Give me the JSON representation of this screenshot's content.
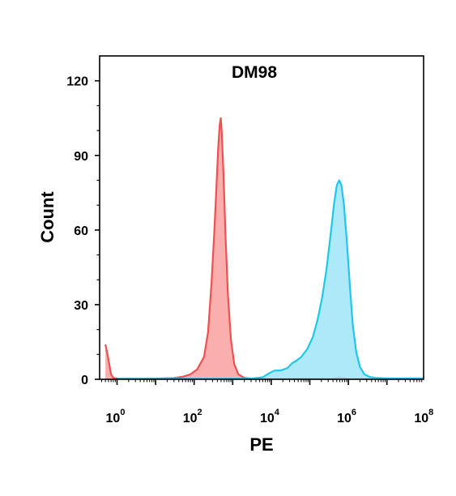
{
  "chart_data": {
    "type": "area",
    "title": "DM98",
    "xlabel": "PE",
    "ylabel": "Count",
    "xscale": "log",
    "xlim": [
      1,
      100000000
    ],
    "ylim": [
      0,
      130
    ],
    "yticks": [
      0,
      30,
      60,
      90,
      120
    ],
    "xticks": [
      {
        "base": "10",
        "exp": "0"
      },
      {
        "base": "10",
        "exp": "2"
      },
      {
        "base": "10",
        "exp": "4"
      },
      {
        "base": "10",
        "exp": "6"
      },
      {
        "base": "10",
        "exp": "8"
      }
    ],
    "grid": false,
    "legend": "none",
    "series": [
      {
        "color": "#f05050",
        "fill": "#f9a0a0",
        "points": [
          [
            0.5,
            14
          ],
          [
            0.6,
            8
          ],
          [
            0.7,
            2
          ],
          [
            0.8,
            0.6
          ],
          [
            1,
            0.3
          ],
          [
            3,
            0.2
          ],
          [
            10,
            0.3
          ],
          [
            30,
            0.5
          ],
          [
            50,
            1
          ],
          [
            80,
            2
          ],
          [
            120,
            4
          ],
          [
            180,
            9
          ],
          [
            230,
            19
          ],
          [
            280,
            38
          ],
          [
            330,
            58
          ],
          [
            380,
            78
          ],
          [
            420,
            93
          ],
          [
            460,
            102
          ],
          [
            490,
            105
          ],
          [
            520,
            99
          ],
          [
            580,
            82
          ],
          [
            650,
            58
          ],
          [
            750,
            34
          ],
          [
            900,
            16
          ],
          [
            1100,
            6
          ],
          [
            1400,
            2
          ],
          [
            2000,
            0.6
          ],
          [
            3000,
            0.3
          ],
          [
            10000,
            0.2
          ],
          [
            100000,
            0.3
          ],
          [
            400000,
            0.3
          ],
          [
            600000,
            0.8
          ],
          [
            900000,
            0.3
          ],
          [
            1000000,
            0.2
          ],
          [
            100000000,
            0.2
          ]
        ]
      },
      {
        "color": "#1ec8ec",
        "fill": "#9fe5f8",
        "points": [
          [
            1,
            0.2
          ],
          [
            100,
            0.2
          ],
          [
            3000,
            0.3
          ],
          [
            6000,
            0.8
          ],
          [
            9000,
            2.5
          ],
          [
            12000,
            3.5
          ],
          [
            18000,
            3.6
          ],
          [
            26000,
            4.5
          ],
          [
            35000,
            6.5
          ],
          [
            45000,
            7.5
          ],
          [
            60000,
            9
          ],
          [
            85000,
            12
          ],
          [
            120000,
            17
          ],
          [
            160000,
            24
          ],
          [
            210000,
            33
          ],
          [
            270000,
            44
          ],
          [
            340000,
            57
          ],
          [
            420000,
            70
          ],
          [
            500000,
            78
          ],
          [
            580000,
            80
          ],
          [
            660000,
            78
          ],
          [
            760000,
            71
          ],
          [
            900000,
            57
          ],
          [
            1100000,
            37
          ],
          [
            1300000,
            22
          ],
          [
            1600000,
            11
          ],
          [
            2000000,
            5
          ],
          [
            2600000,
            2
          ],
          [
            3500000,
            1
          ],
          [
            5000000,
            0.6
          ],
          [
            10000000,
            0.4
          ],
          [
            100000000,
            0.4
          ]
        ]
      }
    ]
  }
}
